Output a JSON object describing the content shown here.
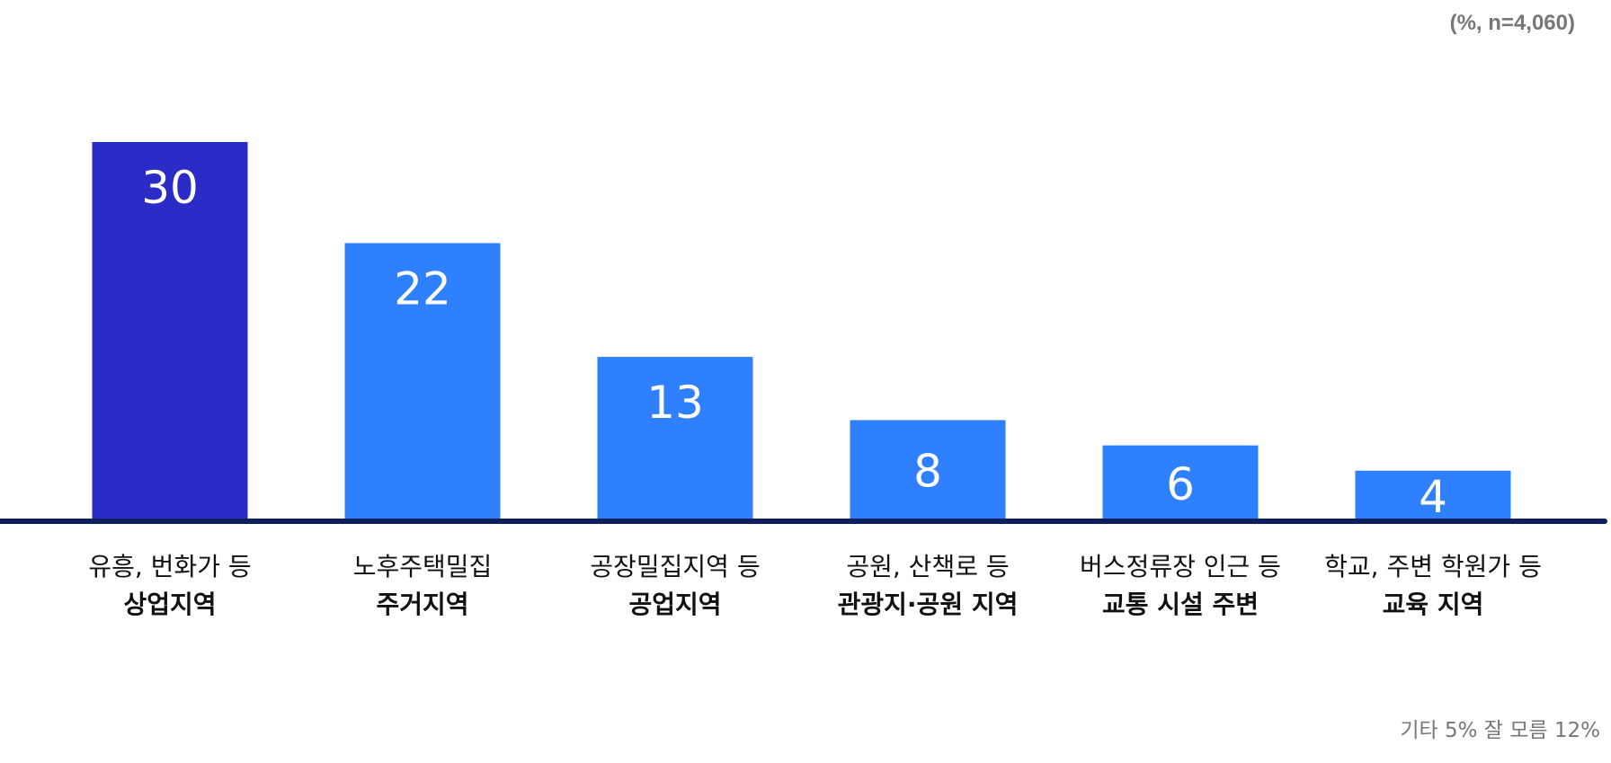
{
  "chart_data": {
    "type": "bar",
    "unit_note": "(%, n=4,060)",
    "categories": [
      {
        "line1": "유흥, 번화가  등",
        "line2": "상업지역"
      },
      {
        "line1": "노후주택밀집",
        "line2": "주거지역"
      },
      {
        "line1": "공장밀집지역 등",
        "line2": "공업지역"
      },
      {
        "line1": "공원, 산책로 등",
        "line2": "관광지·공원 지역"
      },
      {
        "line1": "버스정류장 인근 등",
        "line2": "교통 시설 주변"
      },
      {
        "line1": "학교, 주변 학원가 등",
        "line2": "교육 지역"
      }
    ],
    "values": [
      30,
      22,
      13,
      8,
      6,
      4
    ],
    "ylim": [
      0,
      30
    ],
    "colors": {
      "highlight": "#2b2bc8",
      "default": "#2f80ff",
      "baseline": "#0f1f5c",
      "value_label": "#ffffff",
      "category_label": "#111111"
    },
    "highlight_index": 0,
    "footnote": "기타 5% 잘 모름 12%"
  }
}
